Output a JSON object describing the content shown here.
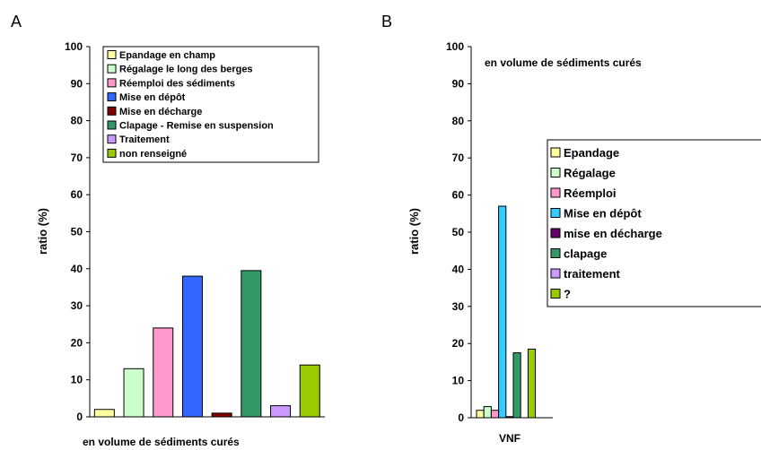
{
  "chart_data": [
    {
      "panel": "A",
      "type": "bar",
      "ylabel": "ratio (%)",
      "xlabel": "en volume de sédiments curés",
      "ylim": [
        0,
        100
      ],
      "yticks": [
        0,
        10,
        20,
        30,
        40,
        50,
        60,
        70,
        80,
        90,
        100
      ],
      "legend_position": "top-right",
      "categories": [
        "Epandage en champ",
        "Régalage le long des berges",
        "Réemploi des sédiments",
        "Mise en dépôt",
        "Mise en décharge",
        "Clapage - Remise en suspension",
        "Traitement",
        "non renseigné"
      ],
      "colors": [
        "#ffffa0",
        "#ccffcc",
        "#ff99cc",
        "#3366ff",
        "#800000",
        "#339966",
        "#cc99ff",
        "#99cc00"
      ],
      "values": [
        2,
        13,
        24,
        38,
        1,
        39.5,
        3,
        14
      ]
    },
    {
      "panel": "B",
      "type": "bar",
      "ylabel": "ratio (%)",
      "title": "en volume de sédiments curés",
      "ylim": [
        0,
        100
      ],
      "yticks": [
        0,
        10,
        20,
        30,
        40,
        50,
        60,
        70,
        80,
        90,
        100
      ],
      "category": "VNF",
      "legend_position": "right",
      "series": [
        {
          "name": "Epandage",
          "value": 2,
          "color": "#ffffa0"
        },
        {
          "name": "Régalage",
          "value": 3,
          "color": "#ccffcc"
        },
        {
          "name": "Réemploi",
          "value": 2,
          "color": "#ff99cc"
        },
        {
          "name": "Mise en dépôt",
          "value": 57,
          "color": "#33ccff"
        },
        {
          "name": "mise en décharge",
          "value": 0.3,
          "color": "#660066"
        },
        {
          "name": "clapage",
          "value": 17.5,
          "color": "#339966"
        },
        {
          "name": "traitement",
          "value": 0,
          "color": "#cc99ff"
        },
        {
          "name": "?",
          "value": 18.5,
          "color": "#99cc00"
        }
      ]
    }
  ]
}
